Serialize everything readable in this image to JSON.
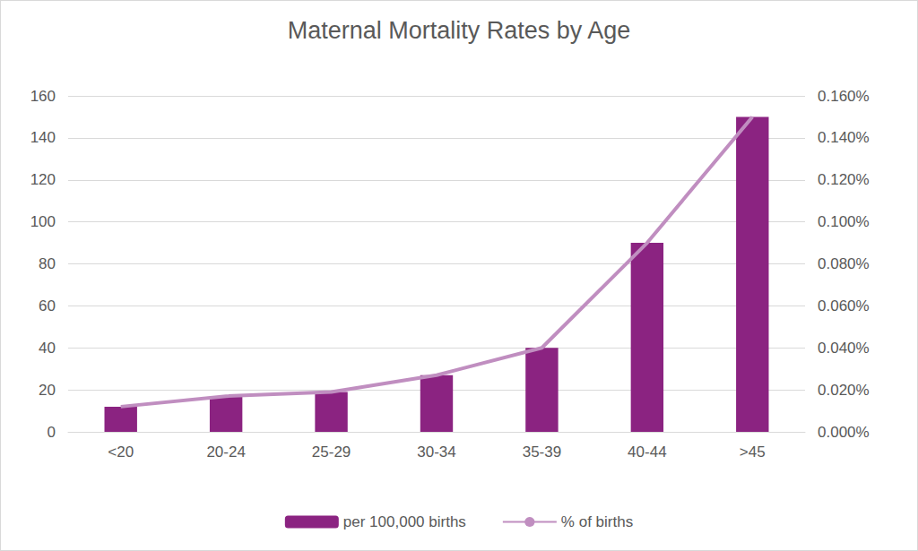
{
  "chart_data": {
    "type": "bar",
    "title": "Maternal Mortality Rates by Age",
    "categories": [
      "<20",
      "20-24",
      "25-29",
      "30-34",
      "35-39",
      "40-44",
      ">45"
    ],
    "series": [
      {
        "name": "per 100,000 births",
        "type": "bar",
        "color": "#8b2381",
        "values": [
          12,
          17,
          19,
          27,
          40,
          90,
          150
        ]
      },
      {
        "name": "% of births",
        "type": "line",
        "color": "#c08ec0",
        "axis": "y2",
        "values": [
          0.012,
          0.017,
          0.019,
          0.027,
          0.04,
          0.09,
          0.15
        ]
      }
    ],
    "ylim": [
      0,
      160
    ],
    "yticks": [
      0,
      20,
      40,
      60,
      80,
      100,
      120,
      140,
      160
    ],
    "y2lim": [
      0,
      0.16
    ],
    "y2ticks": [
      {
        "value": 0,
        "label": "0.000%"
      },
      {
        "value": 0.02,
        "label": "0.020%"
      },
      {
        "value": 0.04,
        "label": "0.040%"
      },
      {
        "value": 0.06,
        "label": "0.060%"
      },
      {
        "value": 0.08,
        "label": "0.080%"
      },
      {
        "value": 0.1,
        "label": "0.100%"
      },
      {
        "value": 0.12,
        "label": "0.120%"
      },
      {
        "value": 0.14,
        "label": "0.140%"
      },
      {
        "value": 0.16,
        "label": "0.160%"
      }
    ],
    "grid": true,
    "legend": "bottom"
  }
}
